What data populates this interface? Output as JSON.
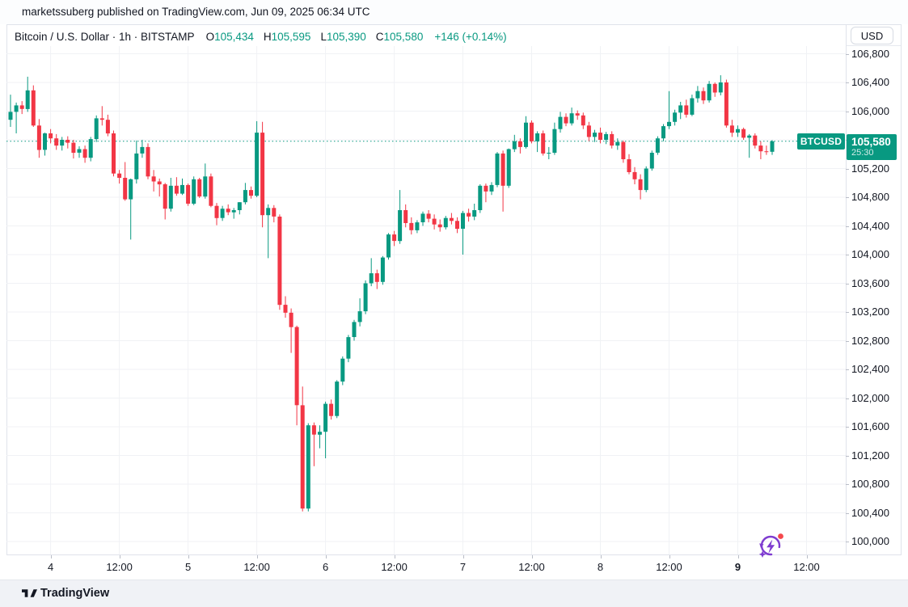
{
  "attribution": "marketssuberg published on TradingView.com, Jun 09, 2025 06:34 UTC",
  "header": {
    "symbol_title": "Bitcoin / U.S. Dollar · 1h · BITSTAMP",
    "ohlc": [
      {
        "label": "O",
        "value": "105,434"
      },
      {
        "label": "H",
        "value": "105,595"
      },
      {
        "label": "L",
        "value": "105,390"
      },
      {
        "label": "C",
        "value": "105,580"
      }
    ],
    "change": "+146 (+0.14%)"
  },
  "price_axis": {
    "currency_button": "USD",
    "ticks": [
      {
        "value": 106800,
        "label": "106,800"
      },
      {
        "value": 106400,
        "label": "106,400"
      },
      {
        "value": 106000,
        "label": "106,000"
      },
      {
        "value": 105600,
        "label": "105,600"
      },
      {
        "value": 105200,
        "label": "105,200"
      },
      {
        "value": 104800,
        "label": "104,800"
      },
      {
        "value": 104400,
        "label": "104,400"
      },
      {
        "value": 104000,
        "label": "104,000"
      },
      {
        "value": 103600,
        "label": "103,600"
      },
      {
        "value": 103200,
        "label": "103,200"
      },
      {
        "value": 102800,
        "label": "102,800"
      },
      {
        "value": 102400,
        "label": "102,400"
      },
      {
        "value": 102000,
        "label": "102,000"
      },
      {
        "value": 101600,
        "label": "101,600"
      },
      {
        "value": 101200,
        "label": "101,200"
      },
      {
        "value": 100800,
        "label": "100,800"
      },
      {
        "value": 100400,
        "label": "100,400"
      },
      {
        "value": 100000,
        "label": "100,000"
      }
    ]
  },
  "time_axis": [
    {
      "label": "4",
      "i": 7,
      "bold": false
    },
    {
      "label": "12:00",
      "i": 19,
      "bold": false
    },
    {
      "label": "5",
      "i": 31,
      "bold": false
    },
    {
      "label": "12:00",
      "i": 43,
      "bold": false
    },
    {
      "label": "6",
      "i": 55,
      "bold": false
    },
    {
      "label": "12:00",
      "i": 67,
      "bold": false
    },
    {
      "label": "7",
      "i": 79,
      "bold": false
    },
    {
      "label": "12:00",
      "i": 91,
      "bold": false
    },
    {
      "label": "8",
      "i": 103,
      "bold": false
    },
    {
      "label": "12:00",
      "i": 115,
      "bold": false
    },
    {
      "label": "9",
      "i": 127,
      "bold": true
    },
    {
      "label": "12:00",
      "i": 139,
      "bold": false
    }
  ],
  "price_label": {
    "symbol": "BTCUSD",
    "price": "105,580",
    "countdown": "25:30",
    "value": 105580
  },
  "footer": {
    "brand": "TradingView"
  },
  "colors": {
    "up": "#089981",
    "down": "#F23645",
    "accent": "#089981",
    "icon_purple": "#7E3BD0",
    "notification_red": "#F5484D",
    "text": "#131722"
  },
  "chart_data": {
    "type": "candlestick",
    "title": "Bitcoin / U.S. Dollar",
    "interval": "1h",
    "exchange": "BITSTAMP",
    "ylabel": "USD",
    "ylim": [
      99800,
      106930
    ],
    "grid": true,
    "price_line": 105580,
    "last_close": 105580,
    "candles_note": "hourly OHLC, Jun 3 17:00 UTC through Jun 9 06:00 UTC 2025",
    "candles": [
      [
        105880,
        106230,
        105780,
        105990
      ],
      [
        105990,
        106120,
        105690,
        106080
      ],
      [
        106080,
        106140,
        105960,
        106030
      ],
      [
        106030,
        106480,
        105990,
        106290
      ],
      [
        106290,
        106360,
        105780,
        105800
      ],
      [
        105800,
        105890,
        105350,
        105460
      ],
      [
        105460,
        105700,
        105380,
        105690
      ],
      [
        105690,
        105750,
        105550,
        105620
      ],
      [
        105620,
        105680,
        105460,
        105520
      ],
      [
        105520,
        105640,
        105450,
        105600
      ],
      [
        105600,
        105650,
        105480,
        105560
      ],
      [
        105560,
        105600,
        105340,
        105420
      ],
      [
        105420,
        105510,
        105350,
        105470
      ],
      [
        105470,
        105520,
        105280,
        105350
      ],
      [
        105350,
        105640,
        105300,
        105610
      ],
      [
        105610,
        105940,
        105570,
        105900
      ],
      [
        105900,
        106070,
        105800,
        105880
      ],
      [
        105880,
        105950,
        105650,
        105690
      ],
      [
        105690,
        105730,
        105090,
        105130
      ],
      [
        105130,
        105180,
        104990,
        105070
      ],
      [
        105070,
        105290,
        104750,
        104770
      ],
      [
        104770,
        105060,
        104210,
        105050
      ],
      [
        105050,
        105590,
        104990,
        105410
      ],
      [
        105410,
        105600,
        105350,
        105500
      ],
      [
        105500,
        105550,
        105050,
        105090
      ],
      [
        105090,
        105180,
        104880,
        105020
      ],
      [
        105020,
        105060,
        104810,
        104980
      ],
      [
        104980,
        105000,
        104490,
        104640
      ],
      [
        104640,
        105070,
        104600,
        104960
      ],
      [
        104960,
        105080,
        104820,
        104850
      ],
      [
        104850,
        105060,
        104830,
        104970
      ],
      [
        104970,
        104990,
        104680,
        104710
      ],
      [
        104710,
        105090,
        104690,
        105050
      ],
      [
        105050,
        105070,
        104790,
        104810
      ],
      [
        104810,
        105270,
        104780,
        105090
      ],
      [
        105090,
        105130,
        104660,
        104680
      ],
      [
        104680,
        104720,
        104410,
        104510
      ],
      [
        104510,
        104680,
        104470,
        104640
      ],
      [
        104640,
        104700,
        104550,
        104590
      ],
      [
        104590,
        104650,
        104500,
        104620
      ],
      [
        104620,
        104730,
        104560,
        104730
      ],
      [
        104730,
        105000,
        104700,
        104900
      ],
      [
        104900,
        104950,
        104780,
        104820
      ],
      [
        104820,
        105860,
        104800,
        105700
      ],
      [
        105700,
        105850,
        104380,
        104550
      ],
      [
        104550,
        104700,
        103950,
        104650
      ],
      [
        104650,
        104690,
        104450,
        104530
      ],
      [
        104530,
        104560,
        103230,
        103300
      ],
      [
        103300,
        103420,
        103120,
        103190
      ],
      [
        103190,
        103250,
        102630,
        102990
      ],
      [
        102990,
        103010,
        101620,
        101900
      ],
      [
        101900,
        102160,
        100420,
        100460
      ],
      [
        100460,
        101650,
        100420,
        101620
      ],
      [
        101620,
        101660,
        101050,
        101490
      ],
      [
        101490,
        101620,
        101300,
        101530
      ],
      [
        101530,
        101950,
        101160,
        101920
      ],
      [
        101920,
        101980,
        101700,
        101750
      ],
      [
        101750,
        102250,
        101720,
        102230
      ],
      [
        102230,
        102580,
        102180,
        102550
      ],
      [
        102550,
        102880,
        102500,
        102850
      ],
      [
        102850,
        103090,
        102800,
        103060
      ],
      [
        103060,
        103390,
        103000,
        103210
      ],
      [
        103210,
        103640,
        103170,
        103600
      ],
      [
        103600,
        103950,
        103560,
        103740
      ],
      [
        103740,
        103790,
        103520,
        103620
      ],
      [
        103620,
        103980,
        103580,
        103960
      ],
      [
        103960,
        104300,
        103930,
        104280
      ],
      [
        104280,
        104330,
        104120,
        104190
      ],
      [
        104190,
        104900,
        104150,
        104620
      ],
      [
        104620,
        104700,
        104380,
        104440
      ],
      [
        104440,
        104520,
        104280,
        104340
      ],
      [
        104340,
        104480,
        104300,
        104450
      ],
      [
        104450,
        104600,
        104400,
        104570
      ],
      [
        104570,
        104620,
        104450,
        104500
      ],
      [
        104500,
        104560,
        104350,
        104420
      ],
      [
        104420,
        104490,
        104320,
        104380
      ],
      [
        104380,
        104540,
        104350,
        104510
      ],
      [
        104510,
        104580,
        104420,
        104470
      ],
      [
        104470,
        104520,
        104300,
        104360
      ],
      [
        104360,
        104610,
        104000,
        104580
      ],
      [
        104580,
        104640,
        104460,
        104530
      ],
      [
        104530,
        104710,
        104480,
        104620
      ],
      [
        104620,
        104980,
        104580,
        104960
      ],
      [
        104960,
        104990,
        104730,
        104880
      ],
      [
        104880,
        105010,
        104830,
        104970
      ],
      [
        104970,
        105430,
        104940,
        105410
      ],
      [
        105410,
        105450,
        104600,
        104960
      ],
      [
        104960,
        105480,
        104930,
        105470
      ],
      [
        105470,
        105670,
        105430,
        105580
      ],
      [
        105580,
        105620,
        105410,
        105500
      ],
      [
        105500,
        105930,
        105480,
        105840
      ],
      [
        105840,
        105870,
        105550,
        105580
      ],
      [
        105580,
        105720,
        105430,
        105690
      ],
      [
        105690,
        105730,
        105380,
        105410
      ],
      [
        105410,
        105500,
        105330,
        105420
      ],
      [
        105420,
        105840,
        105390,
        105750
      ],
      [
        105750,
        105990,
        105700,
        105920
      ],
      [
        105920,
        105970,
        105790,
        105830
      ],
      [
        105830,
        106050,
        105800,
        105970
      ],
      [
        105970,
        106010,
        105880,
        105940
      ],
      [
        105940,
        105980,
        105750,
        105800
      ],
      [
        105800,
        105850,
        105580,
        105640
      ],
      [
        105640,
        105740,
        105570,
        105700
      ],
      [
        105700,
        105770,
        105550,
        105600
      ],
      [
        105600,
        105710,
        105540,
        105680
      ],
      [
        105680,
        105720,
        105480,
        105520
      ],
      [
        105520,
        105620,
        105460,
        105570
      ],
      [
        105570,
        105590,
        105280,
        105330
      ],
      [
        105330,
        105400,
        105120,
        105150
      ],
      [
        105150,
        105220,
        104980,
        105050
      ],
      [
        105050,
        105120,
        104770,
        104900
      ],
      [
        104900,
        105230,
        104870,
        105200
      ],
      [
        105200,
        105450,
        105170,
        105420
      ],
      [
        105420,
        105650,
        105390,
        105620
      ],
      [
        105620,
        105820,
        105580,
        105790
      ],
      [
        105790,
        106280,
        105750,
        105850
      ],
      [
        105850,
        106020,
        105800,
        105980
      ],
      [
        105980,
        106130,
        105890,
        106080
      ],
      [
        106080,
        106160,
        105910,
        105950
      ],
      [
        105950,
        106230,
        105930,
        106180
      ],
      [
        106180,
        106350,
        106120,
        106280
      ],
      [
        106280,
        106330,
        106100,
        106150
      ],
      [
        106150,
        106420,
        106120,
        106380
      ],
      [
        106380,
        106400,
        106200,
        106260
      ],
      [
        106260,
        106500,
        106220,
        106400
      ],
      [
        106400,
        106440,
        105770,
        105800
      ],
      [
        105800,
        105880,
        105640,
        105700
      ],
      [
        105700,
        105800,
        105640,
        105750
      ],
      [
        105750,
        105770,
        105600,
        105630
      ],
      [
        105630,
        105680,
        105350,
        105660
      ],
      [
        105660,
        105690,
        105480,
        105520
      ],
      [
        105520,
        105580,
        105330,
        105440
      ],
      [
        105440,
        105520,
        105390,
        105434
      ],
      [
        105434,
        105595,
        105390,
        105580
      ]
    ]
  }
}
